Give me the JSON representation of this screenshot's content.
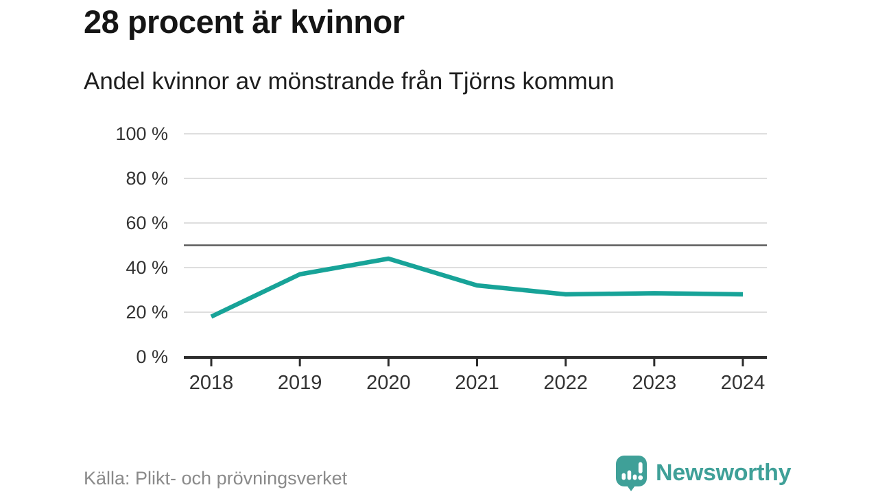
{
  "header": {
    "title": "28 procent är kvinnor",
    "subtitle": "Andel kvinnor av mönstrande från Tjörns kommun"
  },
  "chart_data": {
    "type": "line",
    "title": "Andel kvinnor av mönstrande från Tjörns kommun",
    "categories": [
      "2018",
      "2019",
      "2020",
      "2021",
      "2022",
      "2023",
      "2024"
    ],
    "series": [
      {
        "name": "Andel kvinnor",
        "values": [
          18,
          37,
          44,
          32,
          28,
          28.5,
          28
        ]
      }
    ],
    "unit": "%",
    "ylim": [
      0,
      100
    ],
    "y_ticks": [
      {
        "value": 0,
        "label": "0 %"
      },
      {
        "value": 20,
        "label": "20 %"
      },
      {
        "value": 40,
        "label": "40 %"
      },
      {
        "value": 60,
        "label": "60 %"
      },
      {
        "value": 80,
        "label": "80 %"
      },
      {
        "value": 100,
        "label": "100 %"
      }
    ],
    "reference_line": {
      "value": 50
    },
    "grid": "horizontal-only",
    "legend": "none",
    "colors": {
      "line": "#17a398",
      "reference_line": "#5c5c5c",
      "gridline": "#dedede",
      "axis": "#2d2d2d",
      "tick_label": "#333333"
    }
  },
  "footer": {
    "source": "Källa: Plikt- och prövningsverket",
    "brand": "Newsworthy",
    "brand_color": "#3fa098"
  }
}
